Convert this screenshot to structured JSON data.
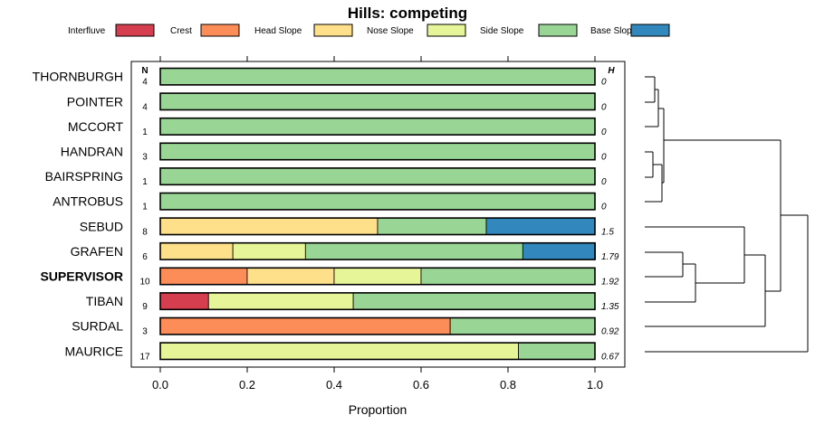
{
  "chart_data": {
    "type": "bar",
    "subtype": "stacked-horizontal-proportion",
    "title": "Hills: competing",
    "xlabel": "Proportion",
    "ylabel": "",
    "xlim": [
      0,
      1
    ],
    "xticks": [
      0.0,
      0.2,
      0.4,
      0.6,
      0.8,
      1.0
    ],
    "xtick_labels": [
      "0.0",
      "0.2",
      "0.4",
      "0.6",
      "0.8",
      "1.0"
    ],
    "n_header": "N",
    "h_header": "H",
    "legend_position": "top",
    "legend": [
      {
        "name": "Interfluve",
        "color": "#d53e4f"
      },
      {
        "name": "Crest",
        "color": "#fc8d59"
      },
      {
        "name": "Head Slope",
        "color": "#fee08b"
      },
      {
        "name": "Nose Slope",
        "color": "#e6f598"
      },
      {
        "name": "Side Slope",
        "color": "#99d594"
      },
      {
        "name": "Base Slope",
        "color": "#3288bd"
      }
    ],
    "rows": [
      {
        "label": "THORNBURGH",
        "n": "4",
        "h": "0",
        "bold": false,
        "values": [
          0,
          0,
          0,
          0,
          1,
          0
        ]
      },
      {
        "label": "POINTER",
        "n": "4",
        "h": "0",
        "bold": false,
        "values": [
          0,
          0,
          0,
          0,
          1,
          0
        ]
      },
      {
        "label": "MCCORT",
        "n": "1",
        "h": "0",
        "bold": false,
        "values": [
          0,
          0,
          0,
          0,
          1,
          0
        ]
      },
      {
        "label": "HANDRAN",
        "n": "3",
        "h": "0",
        "bold": false,
        "values": [
          0,
          0,
          0,
          0,
          1,
          0
        ]
      },
      {
        "label": "BAIRSPRING",
        "n": "1",
        "h": "0",
        "bold": false,
        "values": [
          0,
          0,
          0,
          0,
          1,
          0
        ]
      },
      {
        "label": "ANTROBUS",
        "n": "1",
        "h": "0",
        "bold": false,
        "values": [
          0,
          0,
          0,
          0,
          1,
          0
        ]
      },
      {
        "label": "SEBUD",
        "n": "8",
        "h": "1.5",
        "bold": false,
        "values": [
          0,
          0,
          0.5,
          0,
          0.25,
          0.25
        ]
      },
      {
        "label": "GRAFEN",
        "n": "6",
        "h": "1.79",
        "bold": false,
        "values": [
          0,
          0,
          0.167,
          0.167,
          0.5,
          0.167
        ]
      },
      {
        "label": "SUPERVISOR",
        "n": "10",
        "h": "1.92",
        "bold": true,
        "values": [
          0,
          0.2,
          0.2,
          0.2,
          0.4,
          0
        ]
      },
      {
        "label": "TIBAN",
        "n": "9",
        "h": "1.35",
        "bold": false,
        "values": [
          0.111,
          0,
          0,
          0.333,
          0.556,
          0
        ]
      },
      {
        "label": "SURDAL",
        "n": "3",
        "h": "0.92",
        "bold": false,
        "values": [
          0,
          0.667,
          0,
          0,
          0.333,
          0
        ]
      },
      {
        "label": "MAURICE",
        "n": "17",
        "h": "0.67",
        "bold": false,
        "values": [
          0,
          0,
          0,
          0.824,
          0.176,
          0
        ]
      }
    ]
  }
}
